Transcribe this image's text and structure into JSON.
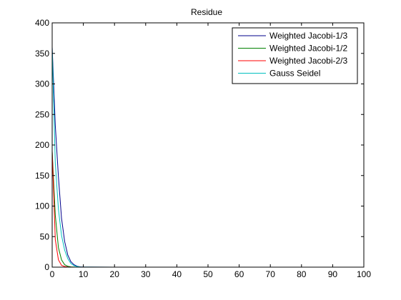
{
  "chart_data": {
    "type": "line",
    "title": "Residue",
    "xlabel": "",
    "ylabel": "",
    "xlim": [
      0,
      100
    ],
    "ylim": [
      0,
      400
    ],
    "xticks": [
      0,
      10,
      20,
      30,
      40,
      50,
      60,
      70,
      80,
      90,
      100
    ],
    "yticks": [
      0,
      50,
      100,
      150,
      200,
      250,
      300,
      350,
      400
    ],
    "grid": false,
    "legend_position": "top-right",
    "x": [
      0,
      1,
      2,
      3,
      4,
      5,
      6,
      7,
      8,
      9,
      10,
      20,
      30,
      40,
      50,
      60,
      70,
      80,
      90,
      100
    ],
    "series": [
      {
        "name": "Weighted Jacobi-1/3",
        "color": "#00008b",
        "values": [
          360,
          232,
          148,
          80,
          42,
          20,
          9,
          4,
          1.5,
          0.5,
          0.2,
          0,
          0,
          0,
          0,
          0,
          0,
          0,
          0,
          0
        ]
      },
      {
        "name": "Weighted Jacobi-1/2",
        "color": "#008000",
        "values": [
          190,
          85,
          32,
          12,
          4,
          1.5,
          0.5,
          0.2,
          0,
          0,
          0,
          0,
          0,
          0,
          0,
          0,
          0,
          0,
          0,
          0
        ]
      },
      {
        "name": "Weighted Jacobi-2/3",
        "color": "#ff0000",
        "values": [
          190,
          45,
          12,
          3,
          1,
          0.3,
          0,
          0,
          0,
          0,
          0,
          0,
          0,
          0,
          0,
          0,
          0,
          0,
          0,
          0
        ]
      },
      {
        "name": "Gauss Seidel",
        "color": "#00bfbf",
        "values": [
          360,
          170,
          95,
          52,
          28,
          14,
          6,
          2.5,
          1,
          0.3,
          0.1,
          0,
          0,
          0,
          0,
          0,
          0,
          0,
          0,
          0
        ]
      }
    ]
  }
}
